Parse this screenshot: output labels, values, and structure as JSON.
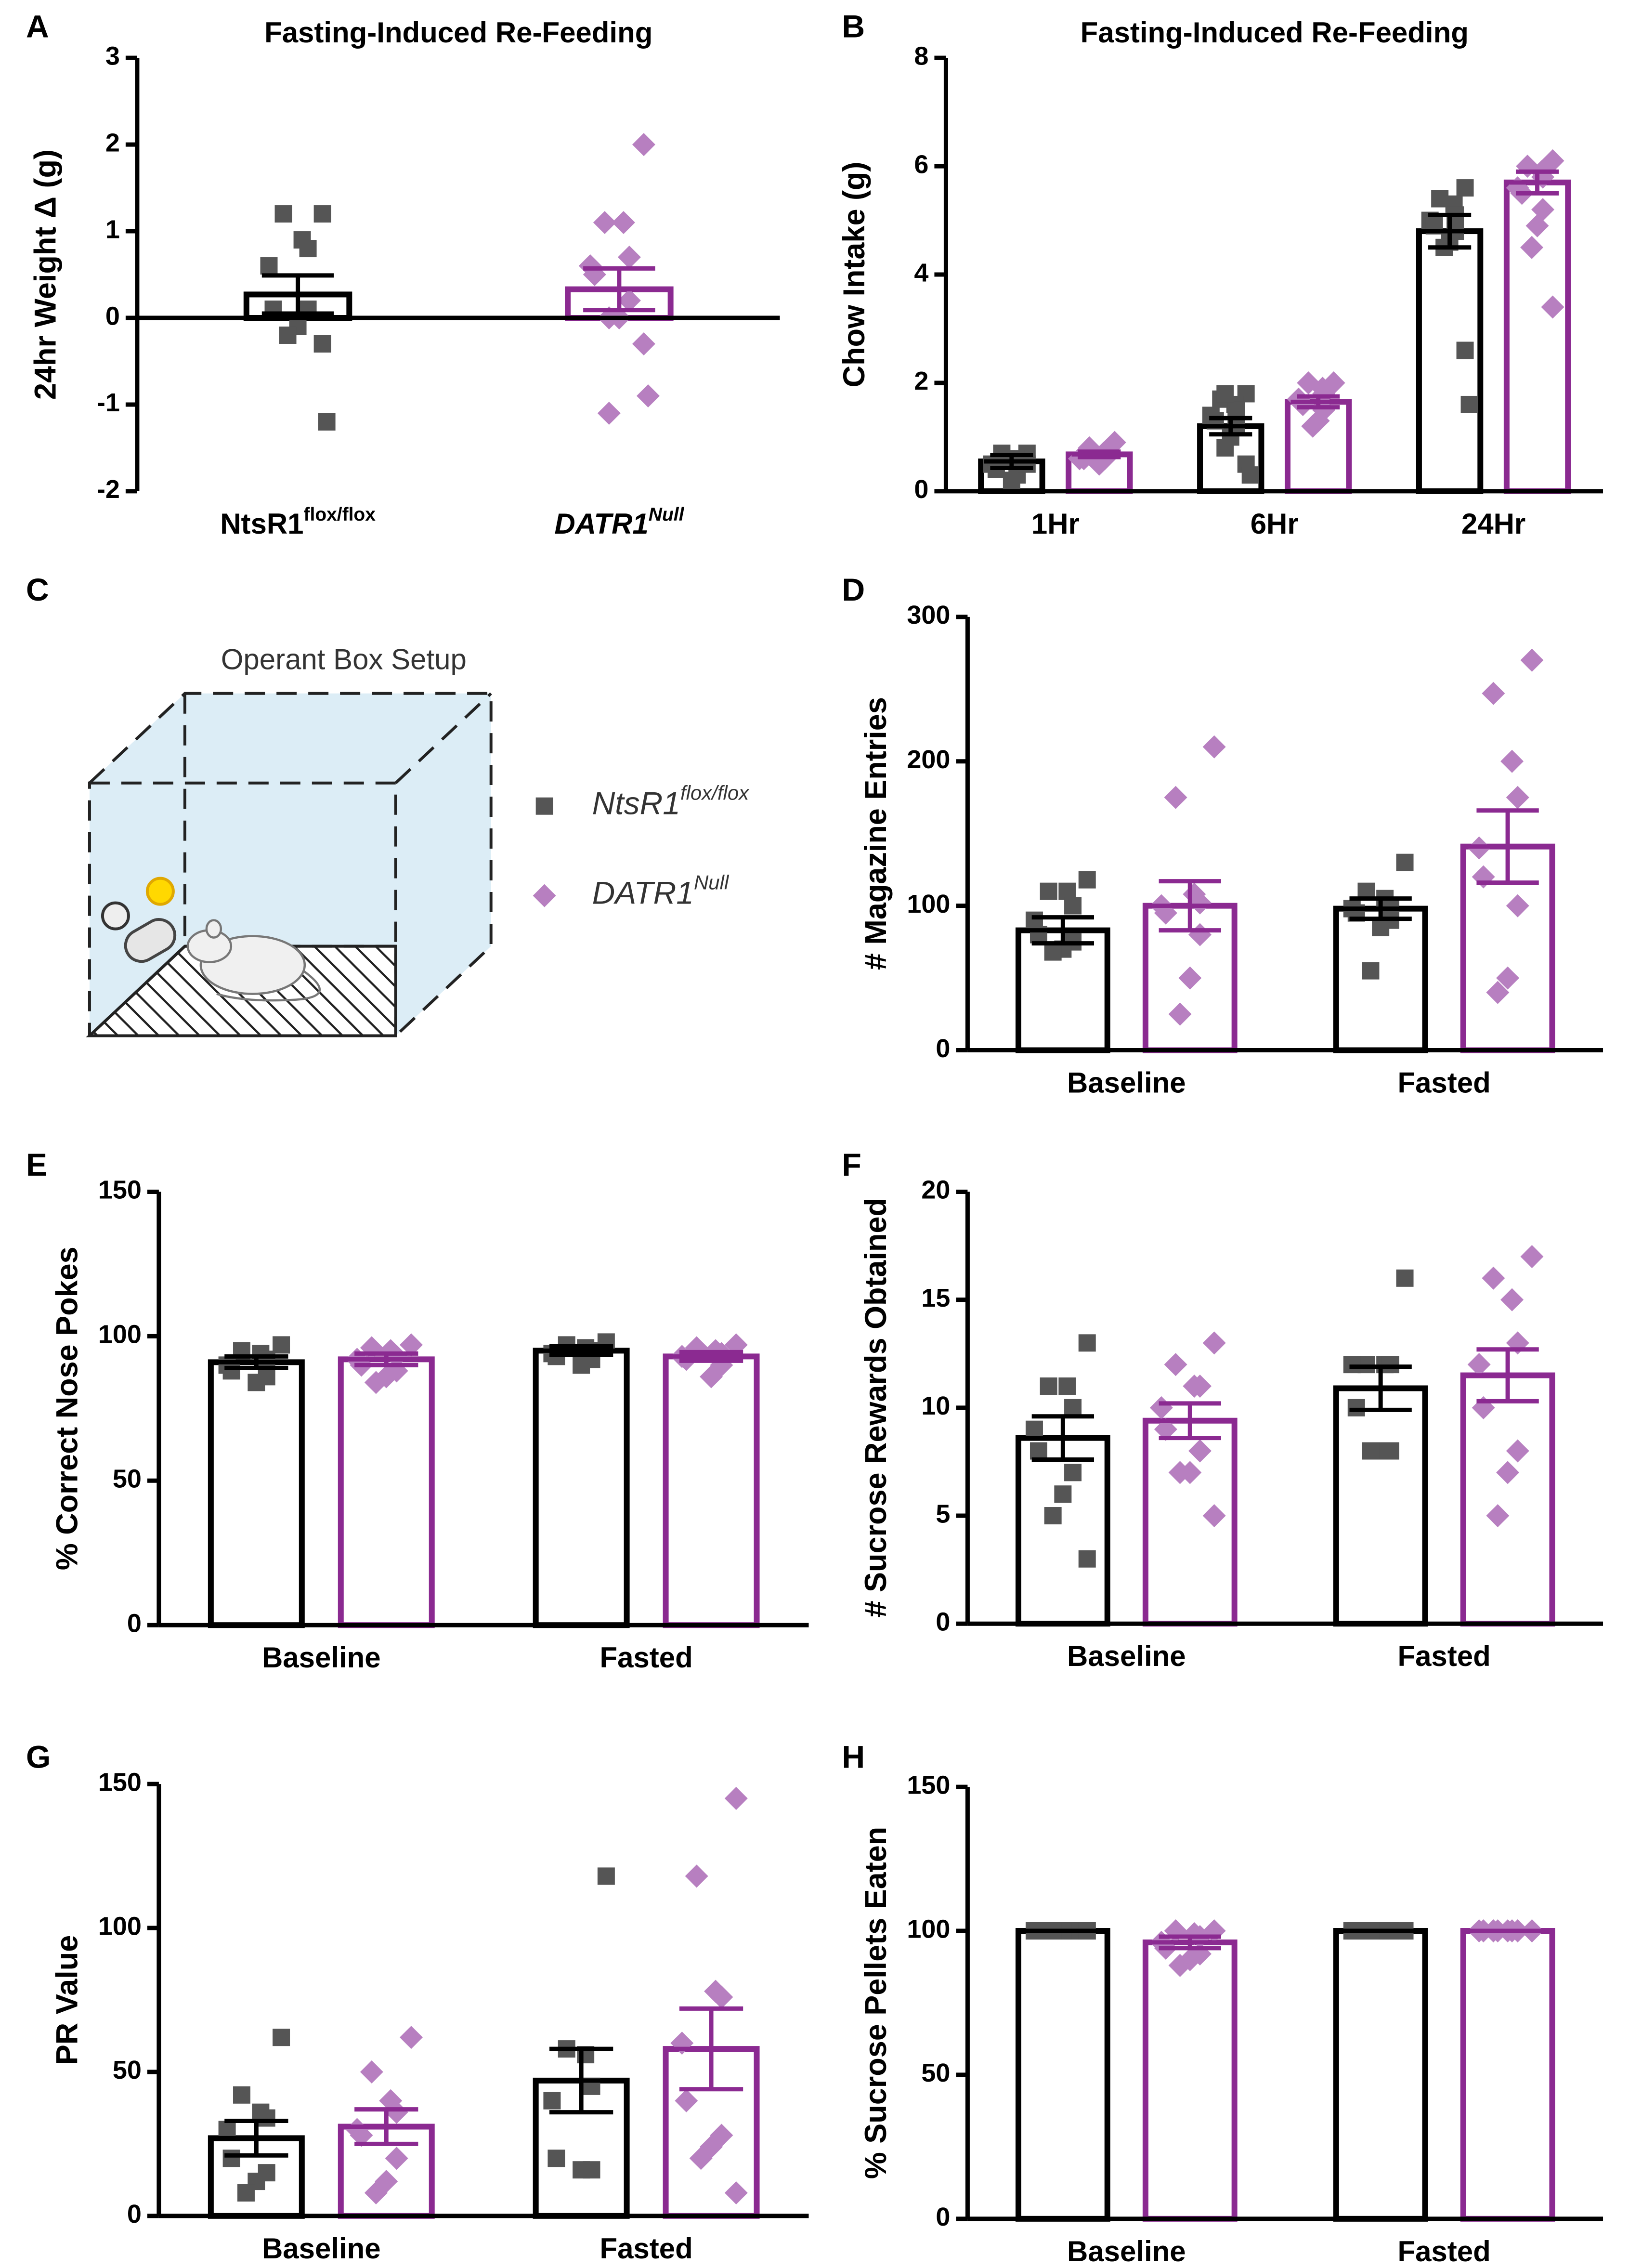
{
  "chart_data": [
    {
      "panel": "A",
      "type": "bar",
      "title": "Fasting-Induced Re-Feeding",
      "ylabel": "24hr Weight Δ (g)",
      "categories": [
        "NtsR1",
        "DATR1"
      ],
      "category_sups": [
        "flox/flox",
        "Null"
      ],
      "ylim": [
        -2,
        3
      ],
      "yticks": [
        -2,
        -1,
        0,
        1,
        2,
        3
      ],
      "single_bar": true,
      "series": [
        {
          "color": "#000000",
          "point_color": "#555555",
          "marker": "square",
          "values": [
            0.27,
            null
          ],
          "errors": [
            0.22,
            null
          ],
          "points": [
            [
              1.2,
              1.2,
              0.9,
              0.8,
              0.6,
              0.1,
              0.1,
              -0.1,
              -0.2,
              -0.3,
              -1.2
            ],
            []
          ]
        },
        {
          "color": "#8b2a91",
          "point_color": "#b77fc0",
          "marker": "diamond",
          "values": [
            null,
            0.33
          ],
          "errors": [
            null,
            0.24
          ],
          "points": [
            [],
            [
              2.0,
              1.1,
              1.1,
              0.7,
              0.6,
              0.5,
              0.2,
              0,
              0,
              -0.3,
              -0.9,
              -1.1
            ]
          ]
        }
      ]
    },
    {
      "panel": "B",
      "type": "bar",
      "title": "Fasting-Induced Re-Feeding",
      "ylabel": "Chow Intake (g)",
      "categories": [
        "1Hr",
        "6Hr",
        "24Hr"
      ],
      "ylim": [
        0,
        8
      ],
      "yticks": [
        0,
        2,
        4,
        6,
        8
      ],
      "series": [
        {
          "color": "#000000",
          "point_color": "#555555",
          "marker": "square",
          "values": [
            0.55,
            1.2,
            4.8
          ],
          "errors": [
            0.12,
            0.15,
            0.3
          ],
          "points": [
            [
              0.7,
              0.7,
              0.6,
              0.5,
              0.5,
              0.4,
              0.3,
              0.2,
              0.6,
              0.5
            ],
            [
              1.8,
              1.7,
              1.6,
              1.5,
              1.4,
              1.3,
              1.2,
              1.0,
              0.8,
              0.5,
              0.3,
              1.8
            ],
            [
              5.6,
              5.4,
              5.3,
              5.1,
              5.0,
              4.9,
              4.8,
              4.6,
              4.5,
              2.6,
              1.6
            ]
          ]
        },
        {
          "color": "#8b2a91",
          "point_color": "#b77fc0",
          "marker": "diamond",
          "values": [
            0.68,
            1.65,
            5.7
          ],
          "errors": [
            0.05,
            0.1,
            0.2
          ],
          "points": [
            [
              0.9,
              0.8,
              0.7,
              0.6,
              0.6,
              0.6,
              0.6,
              0.5
            ],
            [
              2.0,
              2.0,
              1.9,
              1.8,
              1.7,
              1.6,
              1.5,
              1.3,
              1.2
            ],
            [
              6.1,
              6.0,
              5.9,
              5.8,
              5.6,
              5.5,
              5.2,
              4.9,
              4.5,
              3.4
            ]
          ]
        }
      ]
    },
    {
      "panel": "D",
      "type": "bar",
      "ylabel": "# Magazine Entries",
      "categories": [
        "Baseline",
        "Fasted"
      ],
      "ylim": [
        0,
        300
      ],
      "yticks": [
        0,
        100,
        200,
        300
      ],
      "series": [
        {
          "color": "#000000",
          "point_color": "#555555",
          "marker": "square",
          "values": [
            83,
            98
          ],
          "errors": [
            9,
            7
          ],
          "points": [
            [
              118,
              110,
              110,
              100,
              90,
              80,
              75,
              70,
              68
            ],
            [
              130,
              110,
              105,
              100,
              98,
              95,
              90,
              85,
              55
            ]
          ]
        },
        {
          "color": "#8b2a91",
          "point_color": "#b77fc0",
          "marker": "diamond",
          "values": [
            100,
            141
          ],
          "errors": [
            17,
            25
          ],
          "points": [
            [
              210,
              175,
              108,
              102,
              100,
              95,
              80,
              50,
              25
            ],
            [
              270,
              247,
              200,
              175,
              140,
              120,
              100,
              50,
              40
            ]
          ]
        }
      ]
    },
    {
      "panel": "E",
      "type": "bar",
      "ylabel": "% Correct Nose Pokes",
      "categories": [
        "Baseline",
        "Fasted"
      ],
      "ylim": [
        0,
        150
      ],
      "yticks": [
        0,
        50,
        100,
        150
      ],
      "series": [
        {
          "color": "#000000",
          "point_color": "#555555",
          "marker": "square",
          "values": [
            91,
            95
          ],
          "errors": [
            2,
            1.5
          ],
          "points": [
            [
              97,
              95,
              94,
              92,
              90,
              88,
              86,
              84
            ],
            [
              98,
              97,
              96,
              95,
              94,
              93,
              92,
              90
            ]
          ]
        },
        {
          "color": "#8b2a91",
          "point_color": "#b77fc0",
          "marker": "diamond",
          "values": [
            92,
            93
          ],
          "errors": [
            2,
            1.5
          ],
          "points": [
            [
              97,
              96,
              95,
              93,
              92,
              90,
              88,
              86,
              84
            ],
            [
              97,
              96,
              95,
              94,
              93,
              92,
              90,
              86
            ]
          ]
        }
      ]
    },
    {
      "panel": "F",
      "type": "bar",
      "ylabel": "# Sucrose Rewards Obtained",
      "categories": [
        "Baseline",
        "Fasted"
      ],
      "ylim": [
        0,
        20
      ],
      "yticks": [
        0,
        5,
        10,
        15,
        20
      ],
      "series": [
        {
          "color": "#000000",
          "point_color": "#555555",
          "marker": "square",
          "values": [
            8.6,
            10.9
          ],
          "errors": [
            1,
            1
          ],
          "points": [
            [
              13,
              11,
              11,
              10,
              9,
              8,
              7,
              6,
              5,
              3
            ],
            [
              16,
              12,
              12,
              12,
              12,
              10,
              8,
              8,
              8
            ]
          ]
        },
        {
          "color": "#8b2a91",
          "point_color": "#b77fc0",
          "marker": "diamond",
          "values": [
            9.4,
            11.5
          ],
          "errors": [
            0.8,
            1.2
          ],
          "points": [
            [
              13,
              12,
              11,
              11,
              10,
              9,
              8,
              7,
              7,
              5
            ],
            [
              17,
              16,
              15,
              13,
              12,
              10,
              8,
              7,
              5
            ]
          ]
        }
      ]
    },
    {
      "panel": "G",
      "type": "bar",
      "ylabel": "PR Value",
      "categories": [
        "Baseline",
        "Fasted"
      ],
      "ylim": [
        0,
        150
      ],
      "yticks": [
        0,
        50,
        100,
        150
      ],
      "series": [
        {
          "color": "#000000",
          "point_color": "#555555",
          "marker": "square",
          "values": [
            27,
            47
          ],
          "errors": [
            6,
            11
          ],
          "points": [
            [
              62,
              42,
              36,
              34,
              30,
              20,
              15,
              12,
              8
            ],
            [
              118,
              58,
              56,
              45,
              40,
              20,
              16,
              16
            ]
          ]
        },
        {
          "color": "#8b2a91",
          "point_color": "#b77fc0",
          "marker": "diamond",
          "values": [
            31,
            58
          ],
          "errors": [
            6,
            14
          ],
          "points": [
            [
              62,
              50,
              40,
              36,
              30,
              28,
              20,
              12,
              8
            ],
            [
              145,
              118,
              78,
              76,
              60,
              40,
              28,
              24,
              20,
              8
            ]
          ]
        }
      ]
    },
    {
      "panel": "H",
      "type": "bar",
      "ylabel": "% Sucrose Pellets Eaten",
      "categories": [
        "Baseline",
        "Fasted"
      ],
      "ylim": [
        0,
        150
      ],
      "yticks": [
        0,
        50,
        100,
        150
      ],
      "series": [
        {
          "color": "#000000",
          "point_color": "#555555",
          "marker": "square",
          "values": [
            100,
            100
          ],
          "errors": [
            0,
            0
          ],
          "points": [
            [
              100,
              100,
              100,
              100,
              100,
              100,
              100,
              100,
              100,
              100
            ],
            [
              100,
              100,
              100,
              100,
              100,
              100,
              100,
              100,
              100
            ]
          ]
        },
        {
          "color": "#8b2a91",
          "point_color": "#b77fc0",
          "marker": "diamond",
          "values": [
            96,
            100
          ],
          "errors": [
            2,
            0
          ],
          "points": [
            [
              100,
              100,
              99,
              98,
              96,
              94,
              92,
              90,
              88
            ],
            [
              100,
              100,
              100,
              100,
              100,
              100,
              100,
              100,
              100,
              100
            ]
          ]
        }
      ]
    }
  ],
  "diagram": {
    "panel": "C",
    "title": "Operant Box Setup",
    "legend": [
      {
        "name": "NtsR1",
        "sup": "flox/flox",
        "color": "#555555",
        "marker": "square"
      },
      {
        "name": "DATR1",
        "sup": "Null",
        "color": "#b77fc0",
        "marker": "diamond"
      }
    ]
  }
}
